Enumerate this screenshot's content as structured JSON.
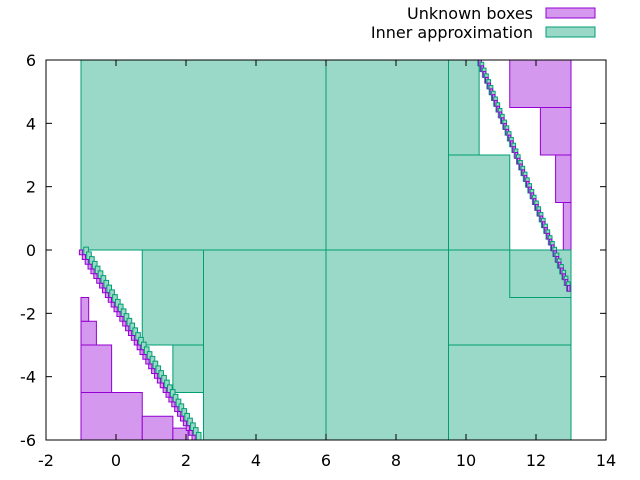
{
  "chart_data": {
    "type": "scatter",
    "title": "",
    "xlabel": "",
    "ylabel": "",
    "xlim": [
      -2,
      14
    ],
    "ylim": [
      -6,
      6
    ],
    "x_ticks": [
      -2,
      0,
      2,
      4,
      6,
      8,
      10,
      12,
      14
    ],
    "y_ticks": [
      -6,
      -4,
      -2,
      0,
      2,
      4,
      6
    ],
    "x_tick_labels": [
      "-2",
      "0",
      "2",
      "4",
      "6",
      "8",
      "10",
      "12",
      "14"
    ],
    "y_tick_labels": [
      "-6",
      "-4",
      "-2",
      "0",
      "2",
      "4",
      "6"
    ],
    "legend_position": "top-right (outside plot)",
    "series": [
      {
        "name": "Unknown boxes",
        "fill": "#d499ee",
        "stroke": "#9400d3",
        "boxes": [
          [
            -1,
            -6,
            0.75,
            -4.5
          ],
          [
            -1,
            -4.5,
            -0.125,
            -3
          ],
          [
            -1,
            -3,
            -0.56,
            -2.25
          ],
          [
            -1,
            -2.25,
            -0.78,
            -1.5
          ],
          [
            0.75,
            -6,
            1.625,
            -5.25
          ],
          [
            1.625,
            -6,
            2.06,
            -5.625
          ],
          [
            11.25,
            4.5,
            13,
            6
          ],
          [
            12.125,
            3,
            13,
            4.5
          ],
          [
            12.56,
            1.5,
            13,
            3
          ],
          [
            12.78,
            0,
            13,
            1.5
          ]
        ]
      },
      {
        "name": "Inner approximation",
        "fill": "#9ad9c7",
        "stroke": "#009e73",
        "boxes": [
          [
            -1,
            0,
            6,
            6
          ],
          [
            6,
            0,
            9.5,
            6
          ],
          [
            2.5,
            -6,
            6,
            0
          ],
          [
            6,
            -6,
            9.5,
            0
          ],
          [
            9.5,
            -3,
            13,
            0
          ],
          [
            9.5,
            -6,
            13,
            -3
          ],
          [
            0.75,
            -3,
            2.5,
            0
          ],
          [
            1.625,
            -4.5,
            2.5,
            -3
          ],
          [
            9.5,
            3,
            10.375,
            6
          ],
          [
            9.5,
            0,
            11.25,
            3
          ],
          [
            11.25,
            -1.5,
            13,
            0
          ]
        ]
      }
    ],
    "boundary_curve": {
      "description": "diagonal boundary region between inner approximation and unknown boxes",
      "lower_left_branch": [
        [
          -1,
          0
        ],
        [
          2.3,
          -6
        ]
      ],
      "upper_right_branch": [
        [
          10.4,
          6
        ],
        [
          13,
          -1.3
        ]
      ]
    }
  }
}
